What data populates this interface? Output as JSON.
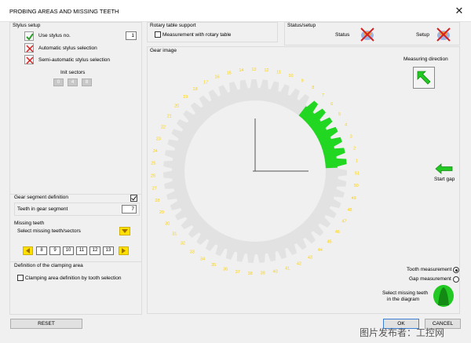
{
  "window": {
    "title": "PROBING AREAS AND MISSING TEETH",
    "close_glyph": "✕"
  },
  "stylus_setup": {
    "title": "Stylus setup",
    "use_stylus_label": "Use stylus no.",
    "use_stylus_value": "1",
    "automatic_label": "Automatic stylus selection",
    "semi_automatic_label": "Semi-automatic stylus selection",
    "init_sectors_label": "Init sectors",
    "sectors": [
      "0",
      "4",
      "8"
    ]
  },
  "rotary_table": {
    "title": "Rotary table support",
    "checkbox_label": "Measurement with rotary table"
  },
  "status_setup": {
    "title": "Status/setup",
    "status_label": "Status",
    "setup_label": "Setup"
  },
  "gear_segment": {
    "title": "Gear segment definition",
    "teeth_label": "Teeth in gear segment",
    "teeth_value": "7"
  },
  "missing_teeth": {
    "title": "Missing teeth",
    "select_label": "Select missing teeth/sectors",
    "teeth": [
      "8",
      "9",
      "10",
      "11",
      "12",
      "13"
    ]
  },
  "clamping": {
    "title": "Definition of the clamping area",
    "checkbox_label": "Clamping area definition by tooth selection"
  },
  "gear_image": {
    "title": "Gear image",
    "measuring_direction_label": "Measuring direction",
    "start_gap_label": "Start gap",
    "tooth_numbers": [
      "1",
      "2",
      "3",
      "4",
      "5",
      "6",
      "7",
      "8",
      "9",
      "10",
      "11",
      "12",
      "13",
      "14",
      "15",
      "16",
      "17",
      "18",
      "19",
      "20",
      "21",
      "22",
      "23",
      "24",
      "25",
      "26",
      "27",
      "28",
      "29",
      "30",
      "31",
      "32",
      "33",
      "34",
      "35",
      "36",
      "37",
      "38",
      "39",
      "40",
      "41",
      "42",
      "43",
      "44",
      "45",
      "46",
      "47",
      "48",
      "49",
      "50",
      "51"
    ],
    "tooth_measurement_label": "Tooth measurement",
    "gap_measurement_label": "Gap measurement",
    "select_missing_label_1": "Select missing teeth",
    "select_missing_label_2": "in the diagram"
  },
  "buttons": {
    "reset": "RESET",
    "ok": "OK",
    "cancel": "CANCEL"
  },
  "watermark": "图片发布者：工控网",
  "colors": {
    "green": "#22d722",
    "tooth_number": "#ffd200",
    "check_green": "#2f9e2f",
    "cross_red": "#d42020"
  }
}
